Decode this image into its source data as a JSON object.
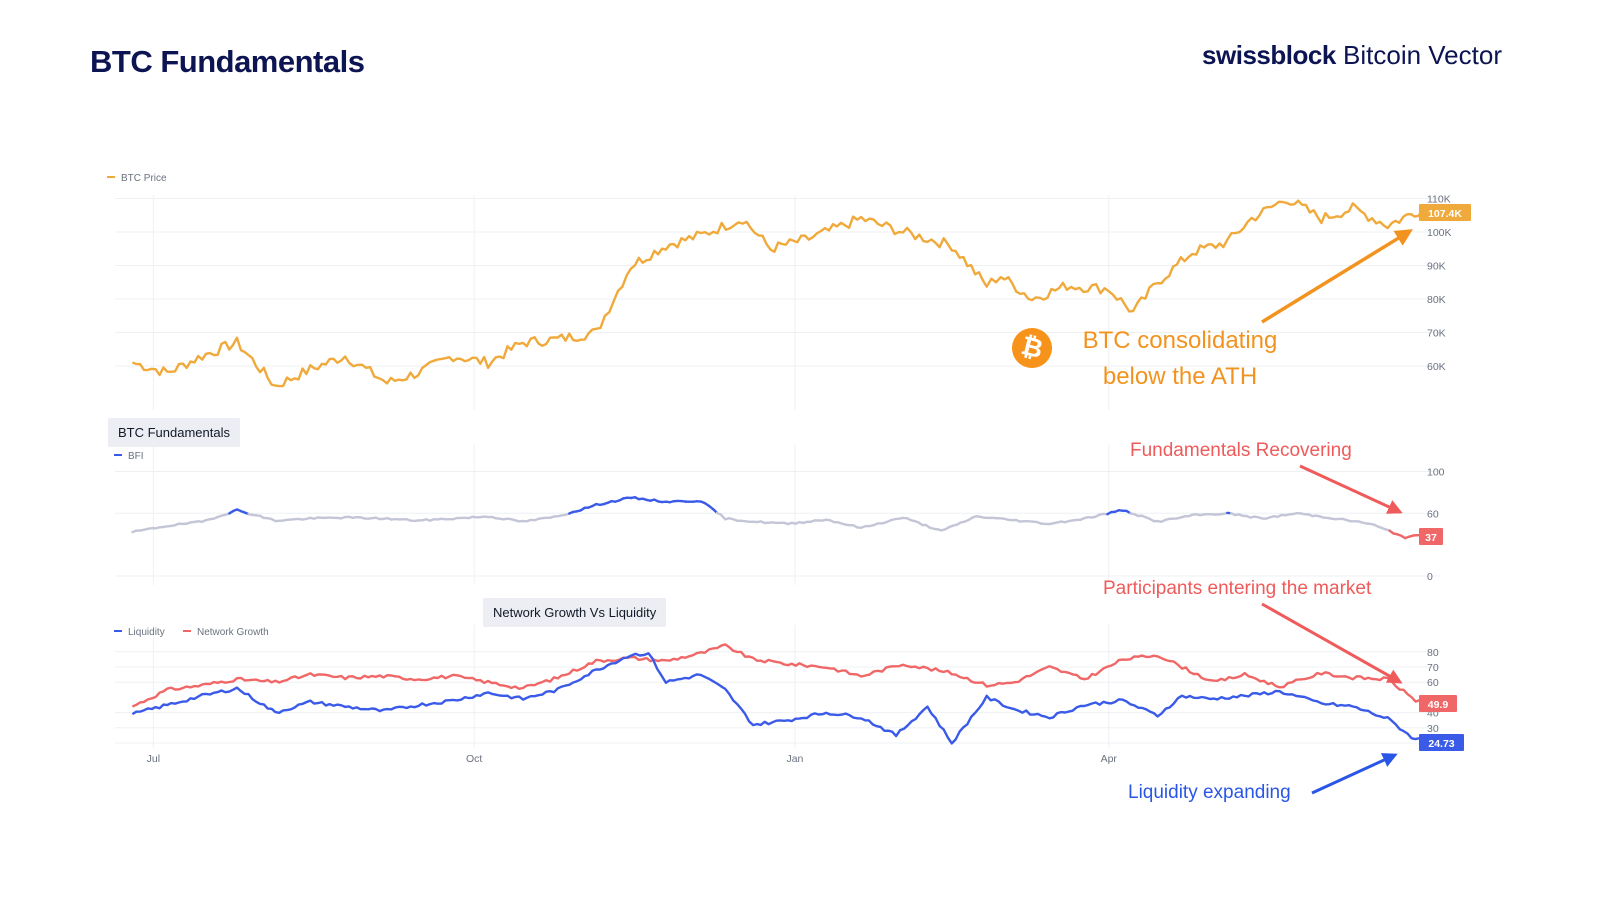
{
  "header": {
    "title": "BTC Fundamentals",
    "brand_bold": "swissblock",
    "brand_light": "Bitcoin Vector"
  },
  "panels": {
    "fundamentals_label": "BTC Fundamentals",
    "network_label": "Network Growth Vs Liquidity"
  },
  "annotations": {
    "btc_line1": "BTC consolidating",
    "btc_line2": "below the ATH",
    "fundamentals": "Fundamentals Recovering",
    "participants": "Participants entering the market",
    "liquidity": "Liquidity expanding"
  },
  "colors": {
    "btc": "#f0a93b",
    "bfi_high": "#3a5ae8",
    "bfi_low": "#c4c6d8",
    "liquidity": "#3a5ae8",
    "network": "#f06767",
    "annot_orange": "#f2931f",
    "annot_red": "#ef5a5a",
    "annot_blue": "#2a56e8",
    "grid": "#eef0f4",
    "axis_text": "#6b7280"
  },
  "chart_data": [
    {
      "type": "line",
      "id": "price",
      "series": [
        {
          "name": "BTC Price",
          "x": [
            "2024-06-25",
            "2024-07-05",
            "2024-07-15",
            "2024-07-25",
            "2024-08-05",
            "2024-08-15",
            "2024-08-25",
            "2024-09-06",
            "2024-09-15",
            "2024-09-25",
            "2024-10-05",
            "2024-10-15",
            "2024-10-25",
            "2024-11-05",
            "2024-11-10",
            "2024-11-15",
            "2024-11-25",
            "2024-12-05",
            "2024-12-17",
            "2024-12-25",
            "2025-01-05",
            "2025-01-20",
            "2025-02-01",
            "2025-02-15",
            "2025-02-25",
            "2025-03-01",
            "2025-03-10",
            "2025-03-20",
            "2025-04-01",
            "2025-04-08",
            "2025-04-15",
            "2025-04-25",
            "2025-05-05",
            "2025-05-12",
            "2025-05-22",
            "2025-06-01",
            "2025-06-10",
            "2025-06-20",
            "2025-06-30",
            "2025-07-02"
          ],
          "values": [
            61,
            58,
            63,
            67,
            54,
            59,
            63,
            55,
            58,
            63,
            61,
            67,
            68,
            70,
            80,
            90,
            96,
            99,
            104,
            95,
            98,
            104,
            100,
            96,
            84,
            87,
            80,
            84,
            83,
            76,
            85,
            94,
            97,
            104,
            110,
            104,
            107,
            102,
            107,
            107.4
          ]
        }
      ],
      "y_ticks": [
        "60K",
        "70K",
        "80K",
        "90K",
        "100K",
        "110K"
      ],
      "last_label": "107.4K"
    },
    {
      "type": "line",
      "id": "bfi",
      "series": [
        {
          "name": "BFI",
          "x": [
            "2024-06-25",
            "2024-07-05",
            "2024-07-15",
            "2024-07-25",
            "2024-08-05",
            "2024-08-15",
            "2024-08-25",
            "2024-09-05",
            "2024-09-15",
            "2024-09-25",
            "2024-10-05",
            "2024-10-15",
            "2024-10-25",
            "2024-11-05",
            "2024-11-15",
            "2024-11-25",
            "2024-12-05",
            "2024-12-12",
            "2024-12-20",
            "2024-12-30",
            "2025-01-10",
            "2025-01-20",
            "2025-02-01",
            "2025-02-12",
            "2025-02-22",
            "2025-03-03",
            "2025-03-15",
            "2025-03-25",
            "2025-04-05",
            "2025-04-15",
            "2025-04-25",
            "2025-05-05",
            "2025-05-15",
            "2025-05-25",
            "2025-06-05",
            "2025-06-15",
            "2025-06-25",
            "2025-07-02"
          ],
          "values": [
            42,
            48,
            52,
            63,
            53,
            55,
            56,
            55,
            53,
            55,
            57,
            52,
            57,
            68,
            75,
            71,
            72,
            55,
            52,
            50,
            54,
            46,
            56,
            43,
            57,
            54,
            50,
            55,
            63,
            52,
            58,
            60,
            55,
            60,
            55,
            50,
            37,
            40
          ]
        }
      ],
      "y_ticks": [
        "0",
        "60",
        "100"
      ],
      "last_label": "37"
    },
    {
      "type": "line",
      "id": "network",
      "series": [
        {
          "name": "Liquidity",
          "x": [
            "2024-06-25",
            "2024-07-05",
            "2024-07-15",
            "2024-07-25",
            "2024-08-05",
            "2024-08-15",
            "2024-08-25",
            "2024-09-05",
            "2024-09-15",
            "2024-09-25",
            "2024-10-05",
            "2024-10-15",
            "2024-10-25",
            "2024-11-05",
            "2024-11-15",
            "2024-11-20",
            "2024-11-25",
            "2024-12-05",
            "2024-12-12",
            "2024-12-20",
            "2024-12-30",
            "2025-01-10",
            "2025-01-20",
            "2025-01-30",
            "2025-02-08",
            "2025-02-15",
            "2025-02-25",
            "2025-03-05",
            "2025-03-15",
            "2025-03-25",
            "2025-04-05",
            "2025-04-15",
            "2025-04-22",
            "2025-04-30",
            "2025-05-10",
            "2025-05-20",
            "2025-06-01",
            "2025-06-10",
            "2025-06-20",
            "2025-06-28",
            "2025-07-02"
          ],
          "values": [
            39,
            45,
            51,
            56,
            40,
            47,
            44,
            41,
            45,
            48,
            53,
            49,
            55,
            68,
            78,
            79,
            60,
            65,
            55,
            32,
            35,
            40,
            37,
            25,
            44,
            20,
            50,
            42,
            37,
            45,
            48,
            38,
            51,
            49,
            51,
            54,
            46,
            44,
            36,
            22,
            24.73
          ]
        },
        {
          "name": "Network Growth",
          "x": [
            "2024-06-25",
            "2024-07-05",
            "2024-07-15",
            "2024-07-25",
            "2024-08-05",
            "2024-08-15",
            "2024-08-25",
            "2024-09-05",
            "2024-09-15",
            "2024-09-25",
            "2024-10-05",
            "2024-10-15",
            "2024-10-25",
            "2024-11-05",
            "2024-11-15",
            "2024-11-25",
            "2024-12-05",
            "2024-12-12",
            "2024-12-20",
            "2024-12-30",
            "2025-01-10",
            "2025-01-20",
            "2025-02-01",
            "2025-02-15",
            "2025-02-25",
            "2025-03-05",
            "2025-03-15",
            "2025-03-25",
            "2025-04-05",
            "2025-04-15",
            "2025-04-22",
            "2025-05-01",
            "2025-05-10",
            "2025-05-20",
            "2025-06-01",
            "2025-06-10",
            "2025-06-20",
            "2025-06-28",
            "2025-07-02"
          ],
          "values": [
            44,
            55,
            58,
            62,
            60,
            65,
            63,
            64,
            62,
            64,
            60,
            56,
            63,
            74,
            76,
            74,
            79,
            84,
            75,
            72,
            70,
            64,
            72,
            66,
            58,
            60,
            70,
            62,
            75,
            78,
            70,
            60,
            65,
            57,
            66,
            63,
            62,
            48,
            49.9
          ]
        }
      ],
      "y_ticks": [
        "30",
        "40",
        "60",
        "70",
        "80"
      ],
      "last_labels": [
        "49.9",
        "24.73"
      ]
    }
  ],
  "x_axis": {
    "ticks": [
      {
        "label": "Jul",
        "date": "2024-07-01"
      },
      {
        "label": "Oct",
        "date": "2024-10-01"
      },
      {
        "label": "Jan",
        "date": "2025-01-01"
      },
      {
        "label": "Apr",
        "date": "2025-04-01"
      }
    ]
  }
}
